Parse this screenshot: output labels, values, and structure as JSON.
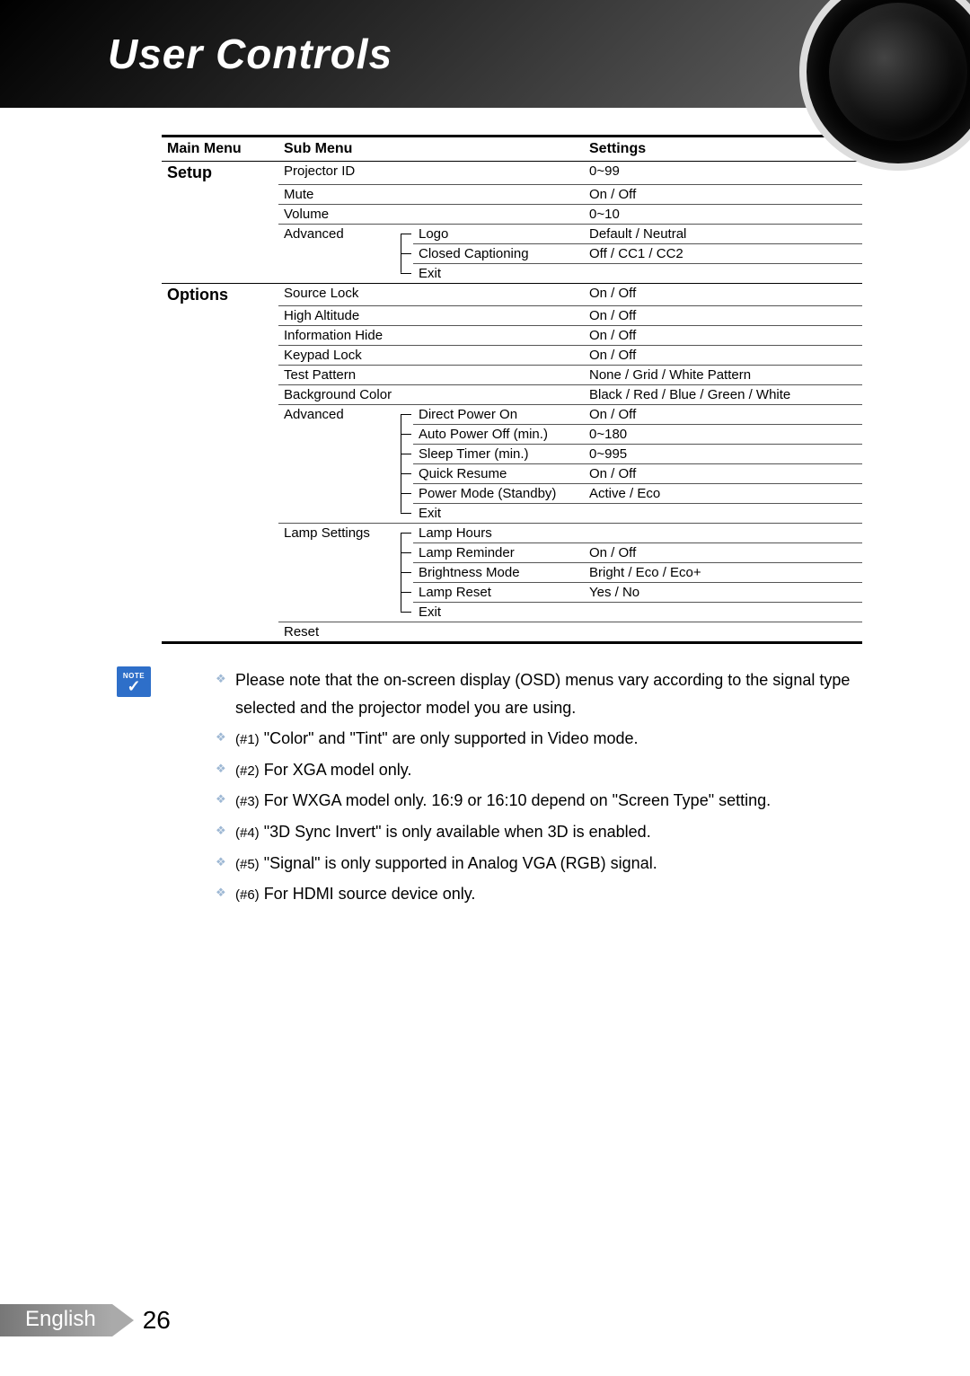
{
  "header": {
    "title": "User Controls"
  },
  "columns": {
    "main": "Main Menu",
    "sub": "Sub Menu",
    "settings": "Settings"
  },
  "note_badge": "NOTE",
  "sections": [
    {
      "name": "Setup",
      "items": [
        {
          "sub": "Projector ID",
          "setting": "0~99"
        },
        {
          "sub": "Mute",
          "setting": "On / Off"
        },
        {
          "sub": "Volume",
          "setting": "0~10"
        },
        {
          "sub": "Advanced",
          "children": [
            {
              "sub2": "Logo",
              "setting": "Default / Neutral"
            },
            {
              "sub2": "Closed Captioning",
              "setting": "Off / CC1 / CC2"
            },
            {
              "sub2": "Exit",
              "setting": ""
            }
          ]
        }
      ]
    },
    {
      "name": "Options",
      "items": [
        {
          "sub": "Source Lock",
          "setting": "On / Off"
        },
        {
          "sub": "High Altitude",
          "setting": "On / Off"
        },
        {
          "sub": "Information Hide",
          "setting": "On / Off"
        },
        {
          "sub": "Keypad Lock",
          "setting": "On / Off"
        },
        {
          "sub": "Test Pattern",
          "setting": "None / Grid / White Pattern"
        },
        {
          "sub": "Background Color",
          "setting": "Black / Red / Blue / Green / White"
        },
        {
          "sub": "Advanced",
          "children": [
            {
              "sub2": "Direct Power On",
              "setting": "On / Off"
            },
            {
              "sub2": "Auto Power Off (min.)",
              "setting": "0~180"
            },
            {
              "sub2": "Sleep Timer (min.)",
              "setting": "0~995"
            },
            {
              "sub2": "Quick Resume",
              "setting": "On / Off"
            },
            {
              "sub2": "Power Mode (Standby)",
              "setting": "Active / Eco"
            },
            {
              "sub2": "Exit",
              "setting": ""
            }
          ]
        },
        {
          "sub": "Lamp Settings",
          "children": [
            {
              "sub2": "Lamp Hours",
              "setting": ""
            },
            {
              "sub2": "Lamp Reminder",
              "setting": "On / Off"
            },
            {
              "sub2": "Brightness Mode",
              "setting": "Bright / Eco / Eco+"
            },
            {
              "sub2": "Lamp Reset",
              "setting": "Yes / No"
            },
            {
              "sub2": "Exit",
              "setting": ""
            }
          ]
        },
        {
          "sub": "Reset",
          "setting": ""
        }
      ]
    }
  ],
  "notes": [
    "Please note that the on-screen display (OSD) menus vary according to the signal type selected and the projector model you are using.",
    "(#1) \"Color\" and \"Tint\" are only supported in Video mode.",
    "(#2) For XGA model only.",
    "(#3) For WXGA model only. 16:9 or 16:10 depend on \"Screen Type\" setting.",
    "(#4) \"3D Sync Invert\" is only available when 3D is enabled.",
    "(#5) \"Signal\" is only supported in Analog VGA (RGB) signal.",
    "(#6) For HDMI source device only."
  ],
  "footer": {
    "language": "English",
    "page": "26"
  }
}
